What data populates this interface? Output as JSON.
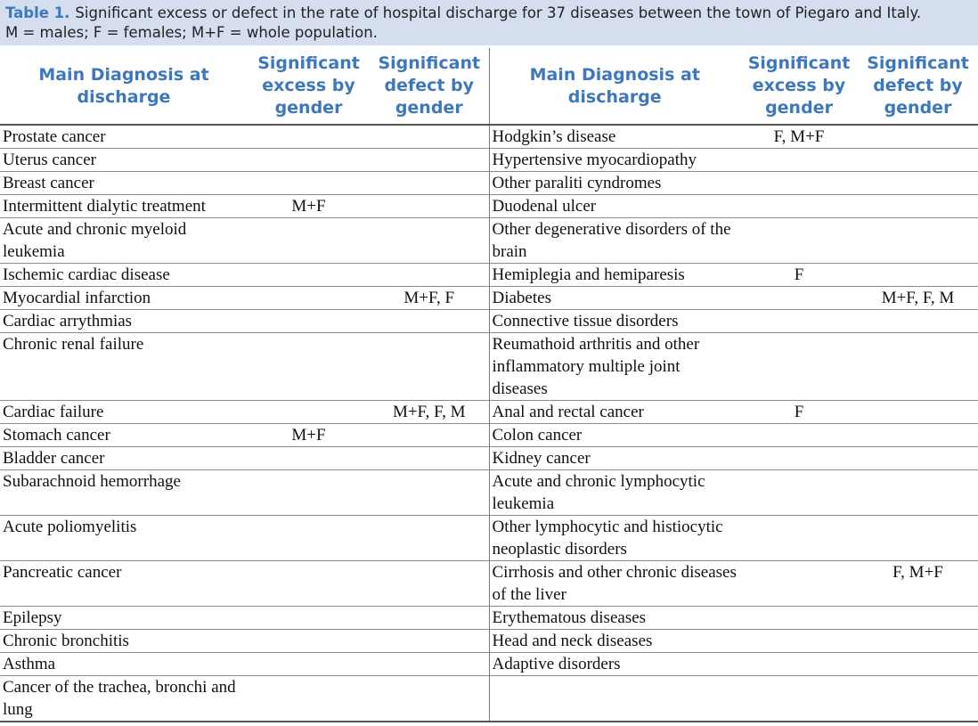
{
  "caption": {
    "label": "Table 1.",
    "lines": [
      "Significant excess or defect in the rate of hospital discharge for 37 diseases between the town of Piegaro and Italy.",
      "M = males; F = females; M+F = whole population."
    ]
  },
  "table": {
    "header": [
      "Main Diagnosis at discharge",
      "Significant excess by gender",
      "Significant defect by gender",
      "Main Diagnosis at discharge",
      "Significant excess by gender",
      "Significant defect by gender"
    ],
    "rows": [
      [
        "Prostate cancer",
        null,
        null,
        "Hodgkin’s disease",
        "F, M+F",
        null
      ],
      [
        "Uterus cancer",
        null,
        null,
        "Hypertensive myocardiopathy",
        null,
        null
      ],
      [
        "Breast cancer",
        null,
        null,
        "Other paraliti cyndromes",
        null,
        null
      ],
      [
        "Intermittent dialytic treatment",
        "M+F",
        null,
        "Duodenal ulcer",
        null,
        null
      ],
      [
        "Acute and chronic myeloid leukemia",
        null,
        null,
        "Other degenerative disorders of the brain",
        null,
        null
      ],
      [
        "Ischemic cardiac disease",
        null,
        null,
        "Hemiplegia and hemiparesis",
        "F",
        null
      ],
      [
        "Myocardial infarction",
        null,
        "M+F, F",
        "Diabetes",
        null,
        "M+F, F, M"
      ],
      [
        "Cardiac arrythmias",
        null,
        null,
        "Connective tissue disorders",
        null,
        null
      ],
      [
        "Chronic renal failure",
        null,
        null,
        "Reumathoid arthritis and other inflammatory  multiple joint diseases",
        null,
        null
      ],
      [
        "Cardiac failure",
        null,
        "M+F, F, M",
        "Anal and rectal cancer",
        "F",
        null
      ],
      [
        "Stomach cancer",
        "M+F",
        null,
        "Colon cancer",
        null,
        null
      ],
      [
        "Bladder cancer",
        null,
        null,
        "Kidney cancer",
        null,
        null
      ],
      [
        "Subarachnoid hemorrhage",
        null,
        null,
        "Acute and chronic lymphocytic leukemia",
        null,
        null
      ],
      [
        "Acute poliomyelitis",
        null,
        null,
        "Other lymphocytic and histiocytic neoplastic disorders",
        null,
        null
      ],
      [
        "Pancreatic cancer",
        null,
        null,
        "Cirrhosis and other chronic diseases of the liver",
        null,
        "F, M+F"
      ],
      [
        "Epilepsy",
        null,
        null,
        "Erythematous diseases",
        null,
        null
      ],
      [
        "Chronic bronchitis",
        null,
        null,
        "Head and neck diseases",
        null,
        null
      ],
      [
        "Asthma",
        null,
        null,
        "Adaptive disorders",
        null,
        null
      ],
      [
        "Cancer of the trachea, bronchi and lung",
        null,
        null,
        null,
        null,
        null
      ]
    ]
  }
}
